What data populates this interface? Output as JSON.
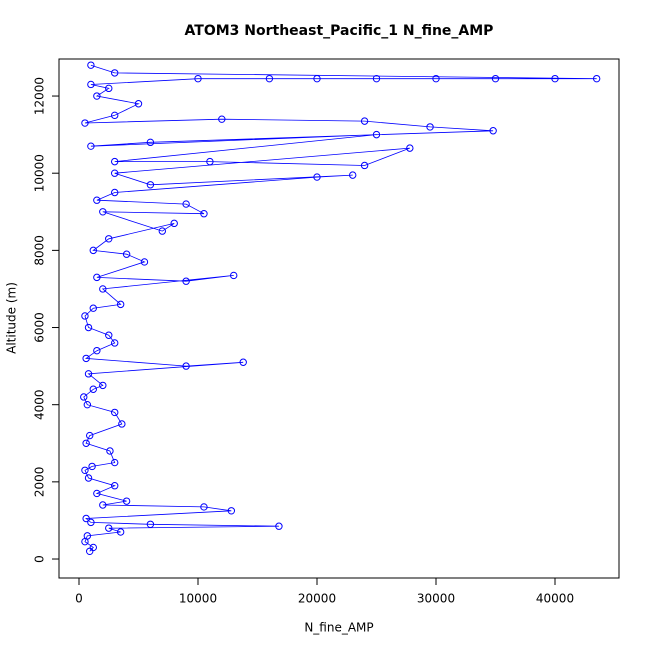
{
  "chart_data": {
    "type": "line",
    "title": "ATOM3 Northeast_Pacific_1 N_fine_AMP",
    "x_label": "N_fine_AMP",
    "y_label": "Altitude (m)",
    "color": "#0000ff",
    "x": [
      900,
      1200,
      500,
      700,
      3500,
      2500,
      16800,
      6000,
      1000,
      600,
      12800,
      10500,
      2000,
      4000,
      1500,
      3000,
      800,
      500,
      1100,
      3000,
      2600,
      600,
      900,
      3600,
      3000,
      700,
      400,
      1200,
      2000,
      800,
      13800,
      9000,
      600,
      1500,
      3000,
      2500,
      800,
      500,
      1200,
      3500,
      2000,
      13000,
      9000,
      1500,
      5500,
      4000,
      1200,
      2500,
      8000,
      7000,
      2000,
      10500,
      9000,
      1500,
      3000,
      20000,
      23000,
      6000,
      3000,
      27800,
      24000,
      11000,
      3000,
      25000,
      1000,
      6000,
      34800,
      29500,
      24000,
      12000,
      500,
      3000,
      5000,
      1500,
      2500,
      1000,
      10000,
      16000,
      20000,
      25000,
      30000,
      35000,
      40000,
      43500,
      3000,
      1000
    ],
    "values": [
      200,
      300,
      450,
      600,
      700,
      800,
      850,
      900,
      950,
      1050,
      1250,
      1350,
      1400,
      1500,
      1700,
      1900,
      2100,
      2300,
      2400,
      2500,
      2800,
      3000,
      3200,
      3500,
      3800,
      4000,
      4200,
      4400,
      4500,
      4800,
      5100,
      5000,
      5200,
      5400,
      5600,
      5800,
      6000,
      6300,
      6500,
      6600,
      7000,
      7350,
      7200,
      7300,
      7700,
      7900,
      8000,
      8300,
      8700,
      8500,
      9000,
      8950,
      9200,
      9300,
      9500,
      9900,
      9950,
      9700,
      10000,
      10650,
      10200,
      10300,
      10300,
      11000,
      10700,
      10800,
      11100,
      11200,
      11350,
      11400,
      11300,
      11500,
      11800,
      12000,
      12200,
      12300,
      12450,
      12450,
      12450,
      12450,
      12450,
      12450,
      12450,
      12450,
      12600,
      12800
    ],
    "xlim": [
      -1681,
      45378
    ],
    "ylim": [
      -492,
      12960
    ],
    "xticks": [
      0,
      10000,
      20000,
      30000,
      40000
    ],
    "yticks": [
      0,
      2000,
      4000,
      6000,
      8000,
      10000,
      12000
    ]
  }
}
